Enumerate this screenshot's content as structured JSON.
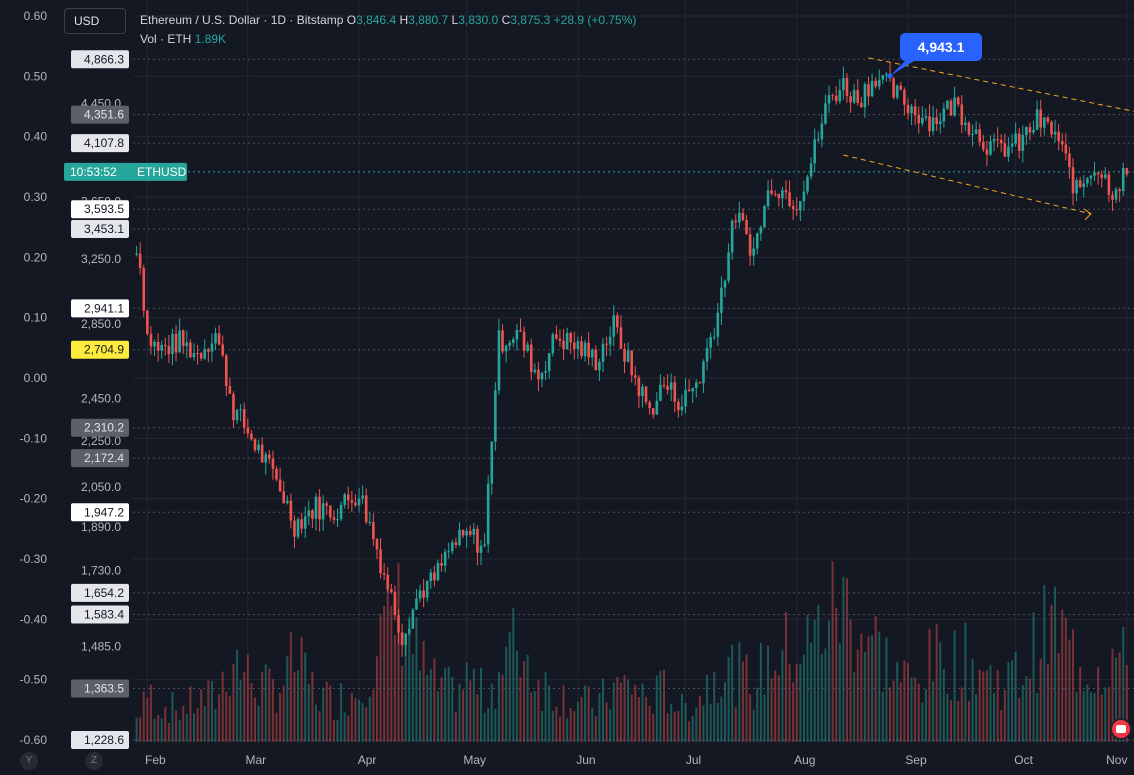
{
  "header": {
    "currency_button": "USD",
    "symbol_line": "Ethereum / U.S. Dollar · 1D · Bitstamp",
    "open_label": "O",
    "open": "3,846.4",
    "high_label": "H",
    "high": "3,880.7",
    "low_label": "L",
    "low": "3,830.0",
    "close_label": "C",
    "close": "3,875.3",
    "change": "+28.9 (+0.75%)",
    "volume_label": "Vol · ETH",
    "volume": "1.89K"
  },
  "callout": {
    "label": "4,943.1",
    "price": 4943.1
  },
  "bottom_buttons": [
    "Y",
    "Z"
  ],
  "colors": {
    "up": "#26a69a",
    "down": "#ef5350",
    "background": "#141823",
    "trend": "#f5a623",
    "callout": "#2962ff"
  },
  "chart_data": {
    "type": "candlestick",
    "title": "Ethereum / U.S. Dollar · 1D · Bitstamp",
    "price_axis": {
      "scale": "log",
      "ticks": [
        5250.0,
        4450.0,
        3650.0,
        3250.0,
        2850.0,
        2450.0,
        2250.0,
        2050.0,
        1890.0,
        1730.0,
        1485.0,
        1365.0
      ],
      "ylim": [
        1228.6,
        5420.0
      ]
    },
    "percent_axis": {
      "ticks": [
        "0.60",
        "0.50",
        "0.40",
        "0.30",
        "0.20",
        "0.10",
        "0.00",
        "-0.10",
        "-0.20",
        "-0.30",
        "-0.40",
        "-0.50",
        "-0.60"
      ],
      "ylim": [
        -0.6,
        0.6
      ]
    },
    "price_labels": [
      {
        "text": "4,866.3",
        "value": 4866.3,
        "style": "light"
      },
      {
        "text": "4,351.6",
        "value": 4351.6,
        "style": "gray"
      },
      {
        "text": "4,107.8",
        "value": 4107.8,
        "style": "light"
      },
      {
        "text": "3,593.5",
        "value": 3593.5,
        "style": "white"
      },
      {
        "text": "3,453.1",
        "value": 3453.1,
        "style": "light"
      },
      {
        "text": "2,941.1",
        "value": 2941.1,
        "style": "white"
      },
      {
        "text": "2,704.9",
        "value": 2704.9,
        "style": "yellow"
      },
      {
        "text": "2,310.2",
        "value": 2310.2,
        "style": "gray"
      },
      {
        "text": "2,172.4",
        "value": 2172.4,
        "style": "gray"
      },
      {
        "text": "1,947.2",
        "value": 1947.2,
        "style": "white"
      },
      {
        "text": "1,654.2",
        "value": 1654.2,
        "style": "light"
      },
      {
        "text": "1,583.4",
        "value": 1583.4,
        "style": "light"
      },
      {
        "text": "1,363.5",
        "value": 1363.5,
        "style": "gray"
      },
      {
        "text": "1,228.6",
        "value": 1228.6,
        "style": "light"
      }
    ],
    "time_label": {
      "text": "10:53:52",
      "symbol": "ETHUSD",
      "value": 3875.3
    },
    "months": [
      "Feb",
      "Mar",
      "Apr",
      "May",
      "Jun",
      "Jul",
      "Aug",
      "Sep",
      "Oct",
      "Nov"
    ],
    "x": [
      "2021-01-28",
      "2021-01-29",
      "2021-01-30",
      "2021-02-01",
      "2021-02-04",
      "2021-02-10",
      "2021-02-15",
      "2021-02-20",
      "2021-02-25",
      "2021-03-01",
      "2021-03-06",
      "2021-03-10",
      "2021-03-14",
      "2021-03-20",
      "2021-03-25",
      "2021-04-01",
      "2021-04-08",
      "2021-04-13",
      "2021-04-18",
      "2021-04-22",
      "2021-04-27",
      "2021-05-02",
      "2021-05-06",
      "2021-05-10",
      "2021-05-15",
      "2021-05-21",
      "2021-05-26",
      "2021-06-01",
      "2021-06-06",
      "2021-06-11",
      "2021-06-16",
      "2021-06-21",
      "2021-06-25",
      "2021-06-30",
      "2021-07-05",
      "2021-07-10",
      "2021-07-15",
      "2021-07-20",
      "2021-07-25",
      "2021-08-01",
      "2021-08-05",
      "2021-08-10",
      "2021-08-14",
      "2021-08-18",
      "2021-08-23",
      "2021-08-28",
      "2021-09-03",
      "2021-09-08",
      "2021-09-14",
      "2021-09-20",
      "2021-09-25",
      "2021-10-02",
      "2021-10-07",
      "2021-10-12",
      "2021-10-18",
      "2021-10-23",
      "2021-10-28",
      "2021-11-01"
    ],
    "close": [
      3280,
      3350,
      3200,
      2780,
      2700,
      2750,
      2680,
      2800,
      2400,
      2290,
      2150,
      2050,
      1900,
      1970,
      1950,
      2030,
      1720,
      1520,
      1660,
      1700,
      1820,
      1860,
      1810,
      2750,
      2800,
      2560,
      2780,
      2720,
      2650,
      2840,
      2590,
      2390,
      2520,
      2430,
      2560,
      2920,
      3560,
      3300,
      3800,
      3650,
      3950,
      4500,
      4620,
      4480,
      4720,
      4550,
      4380,
      4300,
      4450,
      4200,
      4050,
      4100,
      4300,
      4190,
      3720,
      3940,
      3740,
      3875
    ],
    "series": [
      {
        "name": "Vol · ETH",
        "values": [
          0.7,
          0.8,
          0.6,
          1.2,
          0.9,
          0.8,
          1.0,
          1.1,
          2.1,
          1.6,
          1.3,
          1.4,
          2.0,
          1.2,
          1.0,
          1.3,
          2.7,
          3.3,
          1.9,
          1.4,
          1.2,
          1.6,
          1.1,
          1.7,
          2.5,
          1.5,
          1.2,
          1.0,
          0.9,
          1.3,
          1.4,
          1.0,
          1.3,
          0.8,
          1.1,
          1.9,
          1.7,
          1.4,
          2.1,
          2.3,
          2.4,
          3.2,
          3.4,
          2.9,
          2.4,
          1.7,
          1.4,
          2.0,
          2.0,
          1.9,
          1.5,
          1.6,
          2.4,
          2.9,
          2.0,
          1.8,
          2.1,
          1.89
        ]
      }
    ],
    "annotations": [
      {
        "type": "channel",
        "text": "",
        "points": [
          [
            "2021-08-21",
            4880
          ],
          [
            "2021-11-03",
            4380
          ],
          [
            "2021-08-14",
            4010
          ],
          [
            "2021-10-22",
            3560
          ]
        ]
      }
    ]
  }
}
